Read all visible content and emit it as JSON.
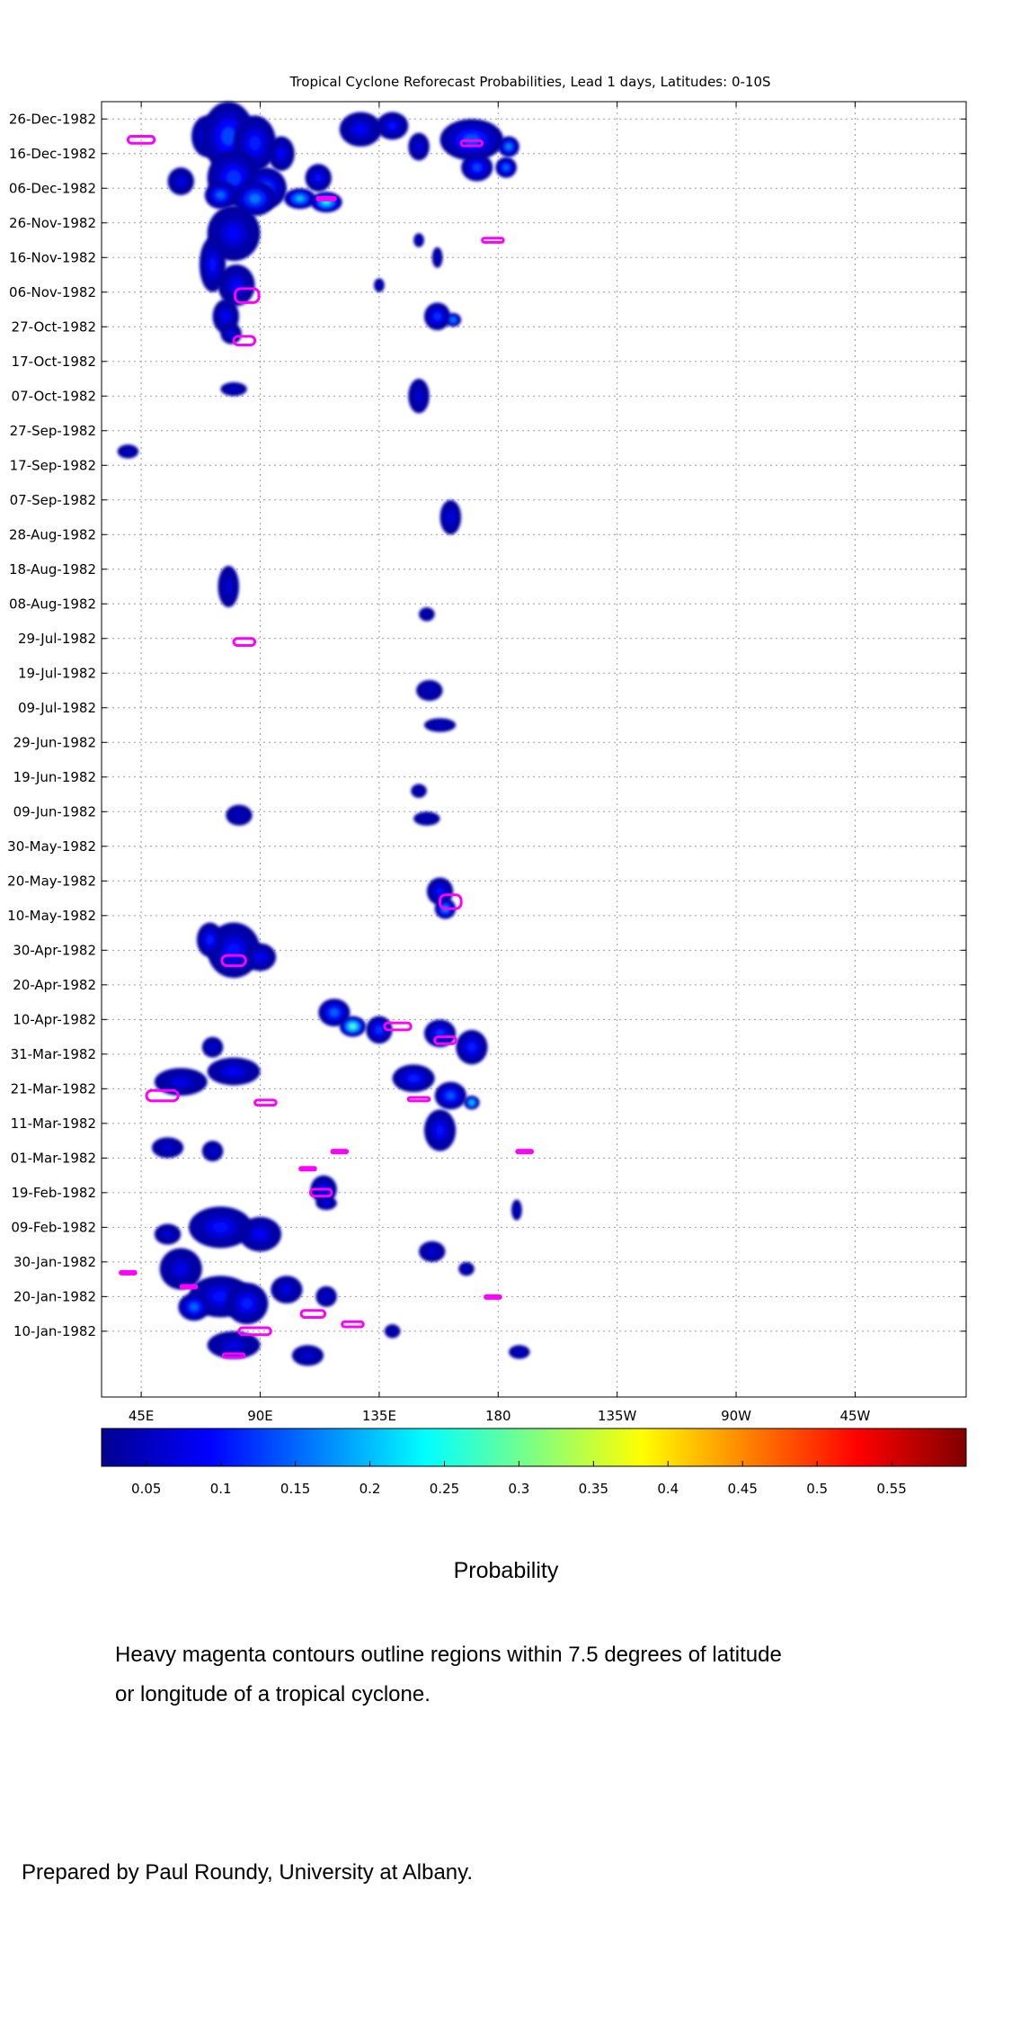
{
  "chart_data": {
    "type": "heatmap",
    "title": "Tropical Cyclone Reforecast Probabilities, Lead 1 days, Latitudes: 0-10S",
    "xlabel": "",
    "ylabel": "",
    "x_ticks": [
      "45E",
      "90E",
      "135E",
      "180",
      "135W",
      "90W",
      "45W"
    ],
    "y_ticks": [
      "26-Dec-1982",
      "16-Dec-1982",
      "06-Dec-1982",
      "26-Nov-1982",
      "16-Nov-1982",
      "06-Nov-1982",
      "27-Oct-1982",
      "17-Oct-1982",
      "07-Oct-1982",
      "27-Sep-1982",
      "17-Sep-1982",
      "07-Sep-1982",
      "28-Aug-1982",
      "18-Aug-1982",
      "08-Aug-1982",
      "29-Jul-1982",
      "19-Jul-1982",
      "09-Jul-1982",
      "29-Jun-1982",
      "19-Jun-1982",
      "09-Jun-1982",
      "30-May-1982",
      "20-May-1982",
      "10-May-1982",
      "30-Apr-1982",
      "20-Apr-1982",
      "10-Apr-1982",
      "31-Mar-1982",
      "21-Mar-1982",
      "11-Mar-1982",
      "01-Mar-1982",
      "19-Feb-1982",
      "09-Feb-1982",
      "30-Jan-1982",
      "20-Jan-1982",
      "10-Jan-1982"
    ],
    "xlim_deg_east": [
      30,
      357
    ],
    "grid": true,
    "colormap": "jet",
    "colorbar": {
      "label": "Probability",
      "ticks": [
        "0.05",
        "0.1",
        "0.15",
        "0.2",
        "0.25",
        "0.3",
        "0.35",
        "0.4",
        "0.45",
        "0.5",
        "0.55"
      ],
      "range": [
        0.02,
        0.6
      ]
    },
    "blobs": [
      {
        "lon": 70,
        "day": 355,
        "dlon": 6,
        "dday": 6,
        "p": 0.1
      },
      {
        "lon": 78,
        "day": 355,
        "dlon": 10,
        "dday": 10,
        "p": 0.13
      },
      {
        "lon": 88,
        "day": 353,
        "dlon": 8,
        "dday": 8,
        "p": 0.11
      },
      {
        "lon": 98,
        "day": 350,
        "dlon": 5,
        "dday": 5,
        "p": 0.09
      },
      {
        "lon": 60,
        "day": 342,
        "dlon": 5,
        "dday": 4,
        "p": 0.08
      },
      {
        "lon": 80,
        "day": 343,
        "dlon": 10,
        "dday": 8,
        "p": 0.12
      },
      {
        "lon": 92,
        "day": 340,
        "dlon": 8,
        "dday": 6,
        "p": 0.14
      },
      {
        "lon": 75,
        "day": 338,
        "dlon": 6,
        "dday": 4,
        "p": 0.15
      },
      {
        "lon": 88,
        "day": 337,
        "dlon": 8,
        "dday": 5,
        "p": 0.16
      },
      {
        "lon": 105,
        "day": 337,
        "dlon": 6,
        "dday": 3,
        "p": 0.2
      },
      {
        "lon": 115,
        "day": 336,
        "dlon": 6,
        "dday": 3,
        "p": 0.24
      },
      {
        "lon": 112,
        "day": 343,
        "dlon": 5,
        "dday": 4,
        "p": 0.1
      },
      {
        "lon": 128,
        "day": 357,
        "dlon": 8,
        "dday": 5,
        "p": 0.09
      },
      {
        "lon": 140,
        "day": 358,
        "dlon": 6,
        "dday": 4,
        "p": 0.1
      },
      {
        "lon": 150,
        "day": 352,
        "dlon": 4,
        "dday": 4,
        "p": 0.08
      },
      {
        "lon": 170,
        "day": 354,
        "dlon": 12,
        "dday": 6,
        "p": 0.14
      },
      {
        "lon": 172,
        "day": 346,
        "dlon": 6,
        "dday": 4,
        "p": 0.13
      },
      {
        "lon": 183,
        "day": 346,
        "dlon": 4,
        "dday": 3,
        "p": 0.15
      },
      {
        "lon": 184,
        "day": 352,
        "dlon": 4,
        "dday": 3,
        "p": 0.17
      },
      {
        "lon": 80,
        "day": 327,
        "dlon": 10,
        "dday": 8,
        "p": 0.09
      },
      {
        "lon": 72,
        "day": 318,
        "dlon": 5,
        "dday": 8,
        "p": 0.1
      },
      {
        "lon": 81,
        "day": 312,
        "dlon": 7,
        "dday": 6,
        "p": 0.09
      },
      {
        "lon": 77,
        "day": 303,
        "dlon": 5,
        "dday": 5,
        "p": 0.09
      },
      {
        "lon": 79,
        "day": 298,
        "dlon": 4,
        "dday": 3,
        "p": 0.08
      },
      {
        "lon": 135,
        "day": 312,
        "dlon": 2,
        "dday": 2,
        "p": 0.06
      },
      {
        "lon": 150,
        "day": 325,
        "dlon": 2,
        "dday": 2,
        "p": 0.06
      },
      {
        "lon": 157,
        "day": 320,
        "dlon": 2,
        "dday": 3,
        "p": 0.06
      },
      {
        "lon": 157,
        "day": 303,
        "dlon": 5,
        "dday": 4,
        "p": 0.12
      },
      {
        "lon": 163,
        "day": 302,
        "dlon": 3,
        "dday": 2,
        "p": 0.16
      },
      {
        "lon": 80,
        "day": 282,
        "dlon": 5,
        "dday": 2,
        "p": 0.06
      },
      {
        "lon": 150,
        "day": 280,
        "dlon": 4,
        "dday": 5,
        "p": 0.07
      },
      {
        "lon": 40,
        "day": 264,
        "dlon": 4,
        "dday": 2,
        "p": 0.06
      },
      {
        "lon": 162,
        "day": 245,
        "dlon": 4,
        "dday": 5,
        "p": 0.08
      },
      {
        "lon": 78,
        "day": 225,
        "dlon": 4,
        "dday": 6,
        "p": 0.07
      },
      {
        "lon": 153,
        "day": 217,
        "dlon": 3,
        "dday": 2,
        "p": 0.05
      },
      {
        "lon": 154,
        "day": 195,
        "dlon": 5,
        "dday": 3,
        "p": 0.06
      },
      {
        "lon": 158,
        "day": 185,
        "dlon": 6,
        "dday": 2,
        "p": 0.06
      },
      {
        "lon": 150,
        "day": 166,
        "dlon": 3,
        "dday": 2,
        "p": 0.05
      },
      {
        "lon": 153,
        "day": 158,
        "dlon": 5,
        "dday": 2,
        "p": 0.05
      },
      {
        "lon": 82,
        "day": 159,
        "dlon": 5,
        "dday": 3,
        "p": 0.06
      },
      {
        "lon": 158,
        "day": 137,
        "dlon": 5,
        "dday": 4,
        "p": 0.1
      },
      {
        "lon": 160,
        "day": 132,
        "dlon": 4,
        "dday": 3,
        "p": 0.18
      },
      {
        "lon": 80,
        "day": 120,
        "dlon": 10,
        "dday": 8,
        "p": 0.1
      },
      {
        "lon": 71,
        "day": 123,
        "dlon": 5,
        "dday": 5,
        "p": 0.11
      },
      {
        "lon": 90,
        "day": 118,
        "dlon": 6,
        "dday": 4,
        "p": 0.09
      },
      {
        "lon": 118,
        "day": 102,
        "dlon": 6,
        "dday": 4,
        "p": 0.15
      },
      {
        "lon": 125,
        "day": 98,
        "dlon": 5,
        "dday": 3,
        "p": 0.28
      },
      {
        "lon": 135,
        "day": 97,
        "dlon": 5,
        "dday": 4,
        "p": 0.12
      },
      {
        "lon": 158,
        "day": 96,
        "dlon": 6,
        "dday": 4,
        "p": 0.12
      },
      {
        "lon": 170,
        "day": 92,
        "dlon": 6,
        "dday": 5,
        "p": 0.11
      },
      {
        "lon": 148,
        "day": 83,
        "dlon": 8,
        "dday": 4,
        "p": 0.11
      },
      {
        "lon": 162,
        "day": 78,
        "dlon": 6,
        "dday": 4,
        "p": 0.14
      },
      {
        "lon": 170,
        "day": 76,
        "dlon": 3,
        "dday": 2,
        "p": 0.2
      },
      {
        "lon": 158,
        "day": 68,
        "dlon": 6,
        "dday": 6,
        "p": 0.1
      },
      {
        "lon": 60,
        "day": 82,
        "dlon": 10,
        "dday": 4,
        "p": 0.08
      },
      {
        "lon": 80,
        "day": 85,
        "dlon": 10,
        "dday": 4,
        "p": 0.09
      },
      {
        "lon": 72,
        "day": 92,
        "dlon": 4,
        "dday": 3,
        "p": 0.07
      },
      {
        "lon": 55,
        "day": 63,
        "dlon": 6,
        "dday": 3,
        "p": 0.07
      },
      {
        "lon": 72,
        "day": 62,
        "dlon": 4,
        "dday": 3,
        "p": 0.07
      },
      {
        "lon": 114,
        "day": 51,
        "dlon": 5,
        "dday": 4,
        "p": 0.09
      },
      {
        "lon": 115,
        "day": 47,
        "dlon": 4,
        "dday": 2,
        "p": 0.08
      },
      {
        "lon": 75,
        "day": 40,
        "dlon": 12,
        "dday": 6,
        "p": 0.1
      },
      {
        "lon": 90,
        "day": 38,
        "dlon": 8,
        "dday": 5,
        "p": 0.09
      },
      {
        "lon": 55,
        "day": 38,
        "dlon": 5,
        "dday": 3,
        "p": 0.07
      },
      {
        "lon": 60,
        "day": 28,
        "dlon": 8,
        "dday": 6,
        "p": 0.08
      },
      {
        "lon": 75,
        "day": 20,
        "dlon": 12,
        "dday": 6,
        "p": 0.1
      },
      {
        "lon": 65,
        "day": 17,
        "dlon": 6,
        "dday": 4,
        "p": 0.15
      },
      {
        "lon": 85,
        "day": 18,
        "dlon": 8,
        "dday": 6,
        "p": 0.11
      },
      {
        "lon": 100,
        "day": 22,
        "dlon": 6,
        "dday": 4,
        "p": 0.08
      },
      {
        "lon": 115,
        "day": 20,
        "dlon": 4,
        "dday": 3,
        "p": 0.07
      },
      {
        "lon": 80,
        "day": 6,
        "dlon": 10,
        "dday": 4,
        "p": 0.08
      },
      {
        "lon": 108,
        "day": 3,
        "dlon": 6,
        "dday": 3,
        "p": 0.07
      },
      {
        "lon": 155,
        "day": 33,
        "dlon": 5,
        "dday": 3,
        "p": 0.07
      },
      {
        "lon": 168,
        "day": 28,
        "dlon": 3,
        "dday": 2,
        "p": 0.06
      },
      {
        "lon": 140,
        "day": 10,
        "dlon": 3,
        "dday": 2,
        "p": 0.05
      },
      {
        "lon": 188,
        "day": 4,
        "dlon": 4,
        "dday": 2,
        "p": 0.06
      },
      {
        "lon": 187,
        "day": 45,
        "dlon": 2,
        "dday": 3,
        "p": 0.06
      }
    ],
    "cyclone_contours": [
      {
        "lon": 45,
        "day": 354,
        "dlon": 10,
        "dday": 2
      },
      {
        "lon": 170,
        "day": 353,
        "dlon": 8,
        "dday": 1.5
      },
      {
        "lon": 115,
        "day": 337,
        "dlon": 7,
        "dday": 0.8
      },
      {
        "lon": 178,
        "day": 325,
        "dlon": 8,
        "dday": 1.2
      },
      {
        "lon": 85,
        "day": 309,
        "dlon": 9,
        "dday": 4
      },
      {
        "lon": 84,
        "day": 296,
        "dlon": 8,
        "dday": 2.5
      },
      {
        "lon": 84,
        "day": 209,
        "dlon": 8,
        "dday": 2
      },
      {
        "lon": 162,
        "day": 134,
        "dlon": 8,
        "dday": 4
      },
      {
        "lon": 80,
        "day": 117,
        "dlon": 9,
        "dday": 3
      },
      {
        "lon": 142,
        "day": 98,
        "dlon": 10,
        "dday": 2
      },
      {
        "lon": 160,
        "day": 94,
        "dlon": 8,
        "dday": 2
      },
      {
        "lon": 53,
        "day": 78,
        "dlon": 12,
        "dday": 3
      },
      {
        "lon": 92,
        "day": 76,
        "dlon": 8,
        "dday": 1.5
      },
      {
        "lon": 150,
        "day": 77,
        "dlon": 8,
        "dday": 1
      },
      {
        "lon": 113,
        "day": 50,
        "dlon": 8,
        "dday": 2
      },
      {
        "lon": 108,
        "day": 57,
        "dlon": 6,
        "dday": 0.6
      },
      {
        "lon": 120,
        "day": 62,
        "dlon": 6,
        "dday": 0.5
      },
      {
        "lon": 190,
        "day": 62,
        "dlon": 6,
        "dday": 0.5
      },
      {
        "lon": 40,
        "day": 27,
        "dlon": 6,
        "dday": 0.5
      },
      {
        "lon": 63,
        "day": 23,
        "dlon": 6,
        "dday": 0.5
      },
      {
        "lon": 178,
        "day": 20,
        "dlon": 6,
        "dday": 0.5
      },
      {
        "lon": 110,
        "day": 15,
        "dlon": 9,
        "dday": 2
      },
      {
        "lon": 125,
        "day": 12,
        "dlon": 8,
        "dday": 1.5
      },
      {
        "lon": 88,
        "day": 10,
        "dlon": 12,
        "dday": 2
      },
      {
        "lon": 80,
        "day": 3,
        "dlon": 8,
        "dday": 1
      }
    ]
  },
  "note": {
    "line1": "Heavy magenta contours outline regions within 7.5 degrees of latitude",
    "line2": "or longitude of a tropical cyclone."
  },
  "credit": "Prepared by Paul Roundy, University at Albany."
}
